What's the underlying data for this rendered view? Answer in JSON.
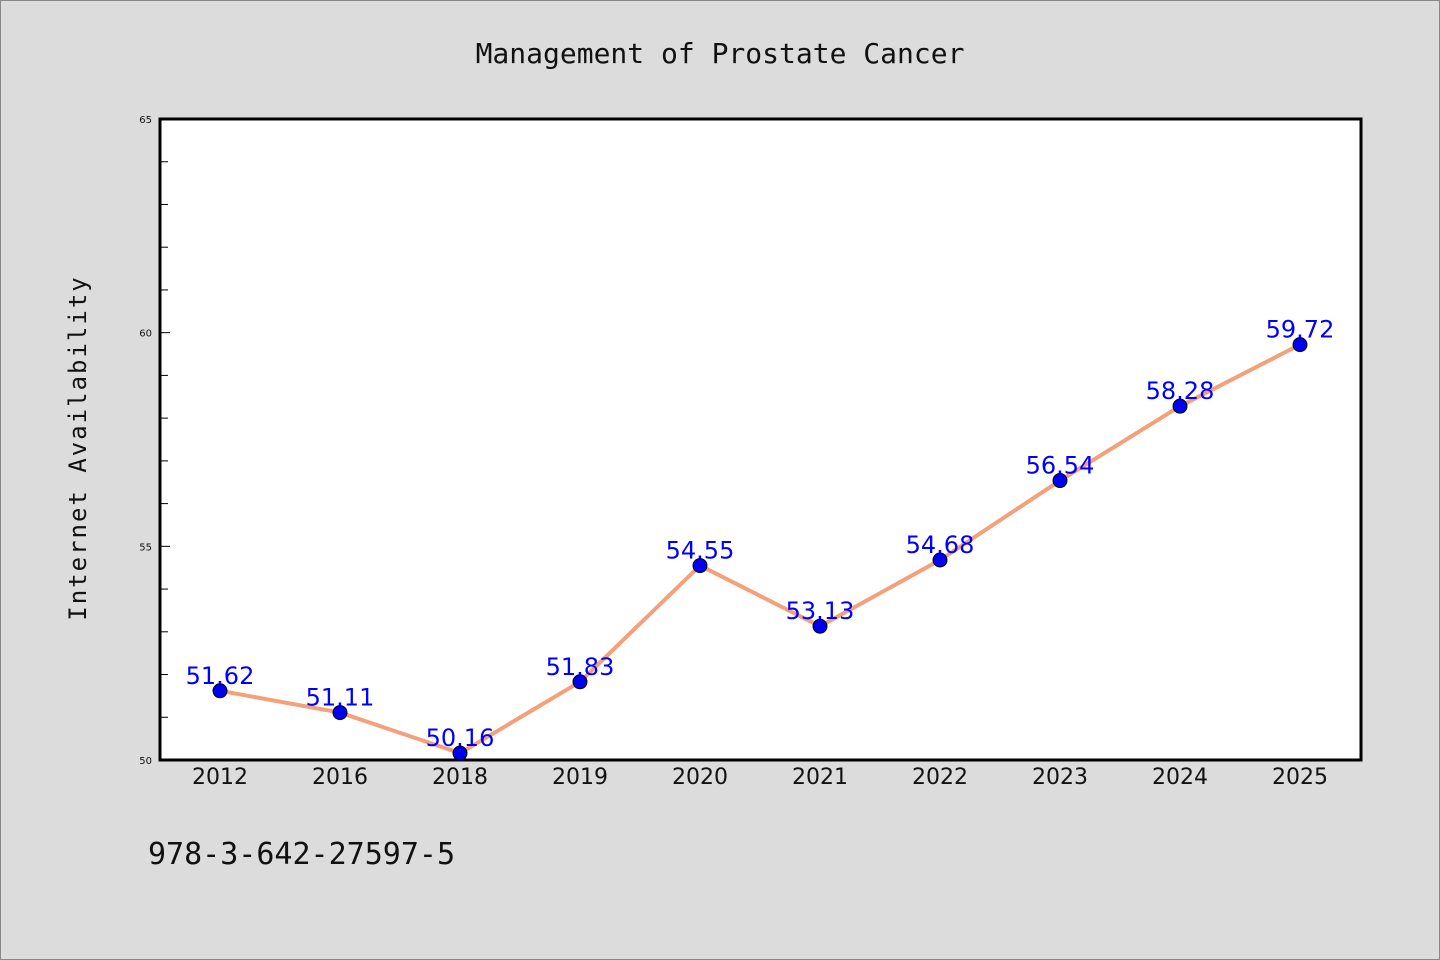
{
  "chart_data": {
    "type": "line",
    "title": "Management of Prostate Cancer",
    "xlabel": "",
    "ylabel": "Internet Availability",
    "categories": [
      "2012",
      "2016",
      "2018",
      "2019",
      "2020",
      "2021",
      "2022",
      "2023",
      "2024",
      "2025"
    ],
    "series": [
      {
        "values": [
          51.62,
          51.11,
          50.16,
          51.83,
          54.55,
          53.13,
          54.68,
          56.54,
          58.28,
          59.72
        ],
        "labels": [
          "51.62",
          "51.11",
          "50.16",
          "51.83",
          "54.55",
          "53.13",
          "54.68",
          "56.54",
          "58.28",
          "59.72"
        ],
        "line_color": "#f4a07a",
        "marker_color": "#0000ee"
      }
    ],
    "ylim": [
      50,
      65
    ],
    "yticks": [
      "50",
      "55",
      "60",
      "65"
    ],
    "grid": false,
    "label_color": "#0000ff"
  },
  "caption": "978-3-642-27597-5",
  "colors": {
    "background": "#dcdcdc",
    "plot_background": "#ffffff"
  }
}
